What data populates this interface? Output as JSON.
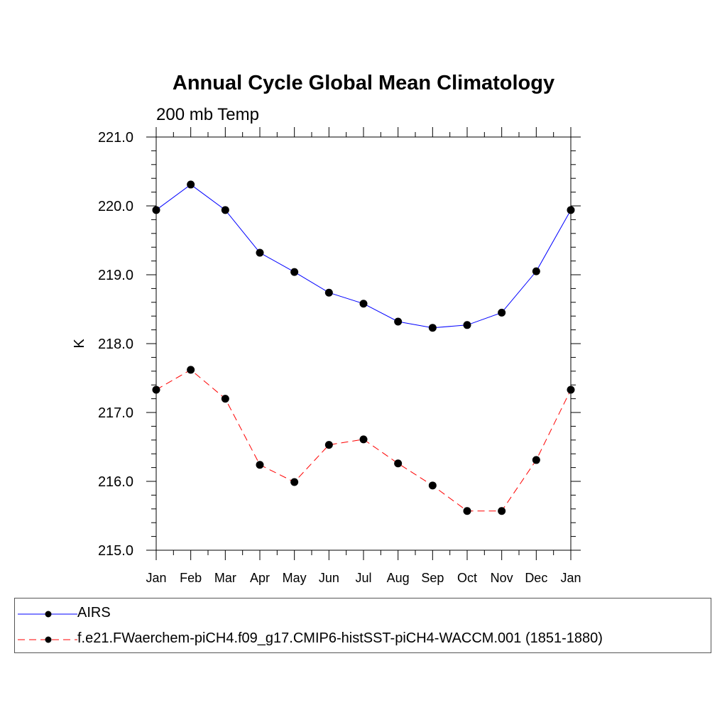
{
  "chart_data": {
    "type": "line",
    "title": "Annual Cycle Global Mean Climatology",
    "subtitle": "200 mb Temp",
    "xlabel": "",
    "ylabel": "K",
    "categories": [
      "Jan",
      "Feb",
      "Mar",
      "Apr",
      "May",
      "Jun",
      "Jul",
      "Aug",
      "Sep",
      "Oct",
      "Nov",
      "Dec",
      "Jan"
    ],
    "ylim": [
      215.0,
      221.0
    ],
    "yticks": [
      "215.0",
      "216.0",
      "217.0",
      "218.0",
      "219.0",
      "220.0",
      "221.0"
    ],
    "grid": false,
    "legend_position": "bottom",
    "series": [
      {
        "name": "AIRS",
        "color": "#0000ff",
        "dash": "solid",
        "marker": "filled-circle",
        "values": [
          219.94,
          220.31,
          219.94,
          219.32,
          219.04,
          218.74,
          218.58,
          218.32,
          218.23,
          218.27,
          218.45,
          219.05,
          219.94
        ]
      },
      {
        "name": "f.e21.FWaerchem-piCH4.f09_g17.CMIP6-histSST-piCH4-WACCM.001 (1851-1880)",
        "color": "#ff0000",
        "dash": "dashed",
        "marker": "filled-circle",
        "values": [
          217.33,
          217.62,
          217.2,
          216.24,
          215.99,
          216.53,
          216.61,
          216.26,
          215.94,
          215.57,
          215.57,
          216.31,
          217.33
        ]
      }
    ]
  }
}
